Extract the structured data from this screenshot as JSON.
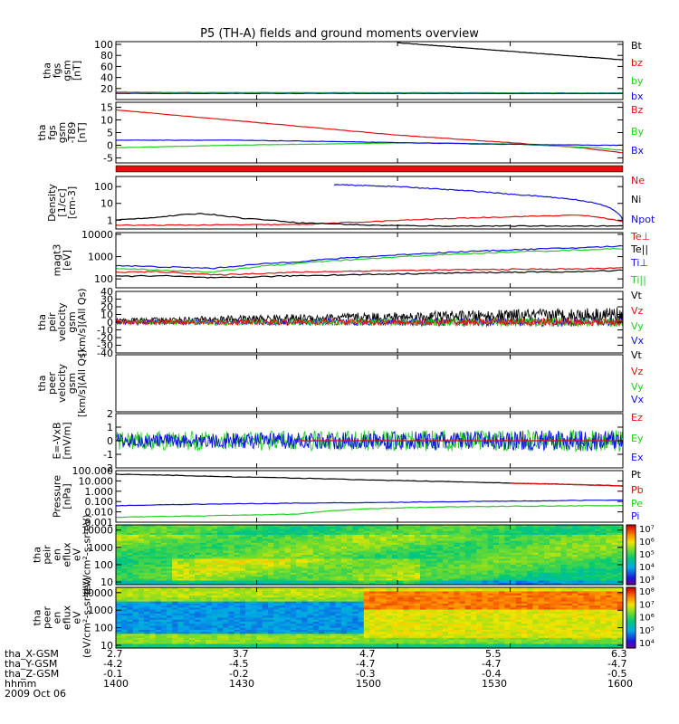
{
  "title": "P5 (TH-A) fields and ground moments overview",
  "colors": {
    "black": "#000000",
    "red": "#e01010",
    "green": "#20d020",
    "blue": "#1010e0"
  },
  "chart_data": [
    {
      "type": "line",
      "name": "fgs_gsm",
      "ylabel": [
        "tha",
        "fgs",
        "gsm",
        "[nT]"
      ],
      "ylim": [
        0,
        105
      ],
      "yticks": [
        20,
        40,
        60,
        80,
        100
      ],
      "grid": false,
      "legend": [
        "Bt",
        "bz",
        "by",
        "bx"
      ],
      "series": [
        {
          "name": "Bt",
          "color": "black",
          "x": [
            4.7,
            6.3
          ],
          "y": [
            103,
            72
          ]
        },
        {
          "name": "bz",
          "color": "red",
          "x": [
            2.7,
            6.3
          ],
          "y": [
            12,
            11
          ]
        },
        {
          "name": "by",
          "color": "green",
          "x": [
            2.7,
            3.0,
            6.3
          ],
          "y": [
            14,
            13,
            12
          ]
        },
        {
          "name": "bx",
          "color": "blue",
          "x": [
            2.7,
            6.3
          ],
          "y": [
            11,
            11
          ]
        }
      ]
    },
    {
      "type": "line",
      "name": "fgs_gsm_t89",
      "ylabel": [
        "tha",
        "fgs",
        "gsm",
        "-T89",
        "[nT]"
      ],
      "ylim": [
        -7,
        17
      ],
      "yticks": [
        -5,
        0,
        5,
        10,
        15
      ],
      "grid": false,
      "legend": [
        "Bz",
        "By",
        "Bx"
      ],
      "series": [
        {
          "name": "Bz",
          "color": "red",
          "x": [
            2.7,
            3.3,
            4.0,
            4.7,
            5.5,
            6.0,
            6.3
          ],
          "y": [
            14,
            11,
            7.5,
            4,
            1,
            -1,
            -3
          ]
        },
        {
          "name": "By",
          "color": "green",
          "x": [
            2.7,
            3.5,
            4.2,
            4.8,
            5.5,
            6.1,
            6.3
          ],
          "y": [
            -1,
            0,
            0.5,
            1,
            0.5,
            -1,
            -2
          ]
        },
        {
          "name": "Bx",
          "color": "blue",
          "x": [
            2.7,
            3.5,
            4.2,
            4.7,
            5.3,
            6.1,
            6.3
          ],
          "y": [
            2,
            2,
            1.5,
            1,
            0.5,
            0,
            0
          ]
        }
      ]
    },
    {
      "type": "line",
      "name": "density",
      "ylabel": [
        "Density",
        "[1/cc]",
        "[cm-3]"
      ],
      "ylim": [
        0.3,
        400
      ],
      "log": true,
      "yticks": [
        1,
        10,
        100
      ],
      "grid": false,
      "legend": [
        "Ne",
        "Ni",
        "Npot"
      ],
      "series": [
        {
          "name": "Ne",
          "color": "red",
          "x": [
            2.7,
            3.0,
            4.0,
            4.5,
            5.0,
            5.5,
            6.0,
            6.3
          ],
          "y": [
            0.5,
            0.5,
            0.55,
            0.8,
            1.2,
            1.6,
            2.0,
            0.8
          ]
        },
        {
          "name": "Ni",
          "color": "black",
          "x": [
            2.7,
            3.0,
            3.3,
            3.6,
            4.0,
            4.5,
            5.0,
            6.3
          ],
          "y": [
            1.0,
            1.5,
            2.5,
            1.3,
            0.7,
            0.5,
            0.45,
            0.45
          ]
        },
        {
          "name": "Npot",
          "color": "blue",
          "x": [
            4.25,
            4.7,
            5.0,
            5.5,
            6.0,
            6.3
          ],
          "y": [
            130,
            100,
            70,
            35,
            15,
            1
          ]
        }
      ]
    },
    {
      "type": "line",
      "name": "magt3",
      "ylabel": [
        "magt3",
        "[eV]"
      ],
      "ylim": [
        40,
        12000
      ],
      "log": true,
      "yticks": [
        100,
        1000,
        10000
      ],
      "grid": false,
      "legend": [
        "Te⊥",
        "Te||",
        "Ti⊥",
        "Ti||"
      ],
      "series": [
        {
          "name": "Te⊥",
          "color": "red",
          "x": [
            2.7,
            3.0,
            3.4,
            4.0,
            4.5,
            5.0,
            5.5,
            6.0,
            6.3
          ],
          "y": [
            200,
            210,
            150,
            200,
            230,
            250,
            270,
            280,
            320
          ]
        },
        {
          "name": "Te||",
          "color": "black",
          "x": [
            2.7,
            3.0,
            3.4,
            4.0,
            4.5,
            5.0,
            5.5,
            6.0,
            6.3
          ],
          "y": [
            130,
            140,
            110,
            140,
            160,
            180,
            200,
            210,
            250
          ]
        },
        {
          "name": "Ti⊥",
          "color": "blue",
          "x": [
            2.7,
            3.0,
            3.4,
            4.0,
            4.5,
            5.0,
            5.5,
            6.0,
            6.3
          ],
          "y": [
            400,
            350,
            300,
            600,
            1000,
            1500,
            2000,
            2500,
            3000
          ]
        },
        {
          "name": "Ti||",
          "color": "green",
          "x": [
            2.7,
            3.0,
            3.4,
            4.0,
            4.5,
            5.0,
            5.5,
            6.0,
            6.3
          ],
          "y": [
            300,
            250,
            200,
            500,
            800,
            1200,
            1600,
            2000,
            2300
          ]
        }
      ]
    },
    {
      "type": "line",
      "name": "peir_velocity",
      "ylabel": [
        "tha",
        "peir",
        "velocity",
        "gsm",
        "[km/s](All Qs)"
      ],
      "ylim": [
        -40,
        40
      ],
      "yticks": [
        -40,
        -30,
        -20,
        -10,
        0,
        10,
        20,
        30,
        40
      ],
      "grid": false,
      "legend": [
        "Vt",
        "Vz",
        "Vy",
        "Vx"
      ],
      "series": [
        {
          "name": "Vt",
          "color": "black",
          "noisy": true,
          "x": [
            2.7,
            3.5,
            4.5,
            5.5,
            6.3
          ],
          "y": [
            2,
            4,
            6,
            8,
            10
          ],
          "amp": [
            3,
            4,
            6,
            9,
            10
          ]
        },
        {
          "name": "Vx",
          "color": "blue",
          "noisy": true,
          "x": [
            2.7,
            6.3
          ],
          "y": [
            0,
            0
          ],
          "amp": [
            3,
            6
          ]
        },
        {
          "name": "Vy",
          "color": "green",
          "noisy": true,
          "x": [
            2.7,
            6.3
          ],
          "y": [
            0,
            0
          ],
          "amp": [
            3,
            6
          ]
        },
        {
          "name": "Vz",
          "color": "red",
          "noisy": true,
          "x": [
            2.7,
            6.3
          ],
          "y": [
            0,
            0
          ],
          "amp": [
            3,
            5
          ]
        }
      ]
    },
    {
      "type": "line",
      "name": "peer_velocity",
      "ylabel": [
        "tha",
        "peer",
        "velocity",
        "gsm",
        "[km/s](All Qs)"
      ],
      "ylim": [
        0,
        1
      ],
      "yticks": [],
      "grid": false,
      "legend": [
        "Vt",
        "Vz",
        "Vy",
        "Vx"
      ],
      "series": []
    },
    {
      "type": "line",
      "name": "e_field",
      "ylabel": [
        "E=-VxB",
        "[mV/m]"
      ],
      "ylim": [
        -2,
        2
      ],
      "yticks": [
        -2,
        -1,
        0,
        1,
        2
      ],
      "grid": false,
      "legend": [
        "Ez",
        "Ey",
        "Ex"
      ],
      "series": [
        {
          "name": "Ey",
          "color": "green",
          "noisy": true,
          "x": [
            2.7,
            6.3
          ],
          "y": [
            0,
            0
          ],
          "amp": [
            0.7,
            0.8
          ]
        },
        {
          "name": "Ex",
          "color": "blue",
          "noisy": true,
          "x": [
            2.7,
            6.3
          ],
          "y": [
            0,
            0
          ],
          "amp": [
            0.5,
            0.8
          ]
        },
        {
          "name": "Ez",
          "color": "red",
          "x": [
            4.0,
            6.3
          ],
          "y": [
            0,
            0
          ]
        }
      ]
    },
    {
      "type": "line",
      "name": "pressure",
      "ylabel": [
        "Pressure",
        "[nPa]"
      ],
      "ylim": [
        0.001,
        100
      ],
      "log": true,
      "yticks": [
        0.001,
        0.01,
        0.1,
        1,
        10,
        100
      ],
      "yticklabels": [
        "0.001",
        "0.010",
        "0.100",
        "1.000",
        "10.000",
        "100.000"
      ],
      "grid": false,
      "legend": [
        "Pt",
        "Pb",
        "Pe",
        "Pi"
      ],
      "series": [
        {
          "name": "Pt",
          "color": "black",
          "x": [
            2.7,
            3.5,
            4.5,
            5.5,
            6.3
          ],
          "y": [
            45,
            25,
            12,
            6,
            3.3
          ]
        },
        {
          "name": "Pb",
          "color": "red",
          "x": [
            5.5,
            6.3
          ],
          "y": [
            6,
            3.2
          ]
        },
        {
          "name": "Pi",
          "color": "blue",
          "x": [
            2.7,
            3.5,
            4.5,
            5.5,
            6.3
          ],
          "y": [
            0.04,
            0.06,
            0.08,
            0.11,
            0.14
          ]
        },
        {
          "name": "Pe",
          "color": "green",
          "x": [
            2.7,
            3.3,
            4.0,
            4.5,
            5.0,
            5.5,
            6.3
          ],
          "y": [
            0.003,
            0.004,
            0.006,
            0.02,
            0.03,
            0.035,
            0.04
          ]
        }
      ]
    },
    {
      "type": "heatmap",
      "name": "peir_en_eflux",
      "ylabel": [
        "tha",
        "peir",
        "en",
        "eflux",
        "eV",
        "(eV/cm²-s-sr-eV)"
      ],
      "ylim": [
        7,
        20000
      ],
      "log": true,
      "yticks": [
        10,
        100,
        1000,
        10000
      ],
      "colorbar": {
        "ticks": [
          "10³",
          "10⁴",
          "10⁵",
          "10⁶",
          "10⁷"
        ]
      }
    },
    {
      "type": "heatmap",
      "name": "peer_en_eflux",
      "ylabel": [
        "tha",
        "peer",
        "en",
        "eflux",
        "eV",
        "(eV/cm²-s-sr-eV)"
      ],
      "ylim": [
        7,
        20000
      ],
      "log": true,
      "yticks": [
        10,
        100,
        1000,
        10000
      ],
      "colorbar": {
        "ticks": [
          "10⁴",
          "10⁵",
          "10⁶",
          "10⁷",
          "10⁸"
        ]
      }
    }
  ],
  "xaxis": {
    "ticks": [
      {
        "x": "2.7",
        "y": "-4.2",
        "z": "-0.1",
        "hhmm": "1400"
      },
      {
        "x": "3.7",
        "y": "-4.5",
        "z": "-0.2",
        "hhmm": "1430"
      },
      {
        "x": "4.7",
        "y": "-4.7",
        "z": "-0.3",
        "hhmm": "1500"
      },
      {
        "x": "5.5",
        "y": "-4.7",
        "z": "-0.4",
        "hhmm": "1530"
      },
      {
        "x": "6.3",
        "y": "-4.7",
        "z": "-0.5",
        "hhmm": "1600"
      }
    ],
    "labels": [
      "tha_X-GSM",
      "tha_Y-GSM",
      "tha_Z-GSM",
      "hhmm",
      "2009 Oct 06"
    ]
  }
}
